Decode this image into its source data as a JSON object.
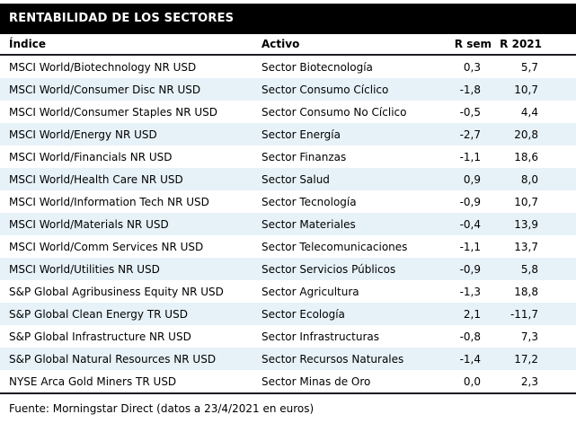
{
  "title": "RENTABILIDAD DE LOS SECTORES",
  "colors": {
    "header_bg": "#000000",
    "header_text": "#ffffff",
    "row_stripe": "#e7f2f8",
    "rule": "#1c1c22",
    "text": "#000000"
  },
  "chart_data": {
    "type": "table",
    "title": "RENTABILIDAD DE LOS SECTORES",
    "columns": [
      "Índice",
      "Activo",
      "R sem",
      "R 2021"
    ],
    "rows": [
      [
        "MSCI World/Biotechnology NR USD",
        "Sector Biotecnología",
        "0,3",
        "5,7"
      ],
      [
        "MSCI World/Consumer Disc NR USD",
        "Sector Consumo Cíclico",
        "-1,8",
        "10,7"
      ],
      [
        "MSCI World/Consumer Staples NR USD",
        "Sector Consumo No Cíclico",
        "-0,5",
        "4,4"
      ],
      [
        "MSCI World/Energy NR USD",
        "Sector Energía",
        "-2,7",
        "20,8"
      ],
      [
        "MSCI World/Financials NR USD",
        "Sector Finanzas",
        "-1,1",
        "18,6"
      ],
      [
        "MSCI World/Health Care NR USD",
        "Sector Salud",
        "0,9",
        "8,0"
      ],
      [
        "MSCI World/Information Tech NR USD",
        "Sector Tecnología",
        "-0,9",
        "10,7"
      ],
      [
        "MSCI World/Materials NR USD",
        "Sector Materiales",
        "-0,4",
        "13,9"
      ],
      [
        "MSCI World/Comm Services NR USD",
        "Sector Telecomunicaciones",
        "-1,1",
        "13,7"
      ],
      [
        "MSCI World/Utilities NR USD",
        "Sector Servicios Públicos",
        "-0,9",
        "5,8"
      ],
      [
        "S&P Global Agribusiness Equity NR USD",
        "Sector Agricultura",
        "-1,3",
        "18,8"
      ],
      [
        "S&P Global Clean Energy TR USD",
        "Sector Ecología",
        "2,1",
        "-11,7"
      ],
      [
        "S&P Global Infrastructure NR USD",
        "Sector Infrastructuras",
        "-0,8",
        "7,3"
      ],
      [
        "S&P Global Natural Resources NR USD",
        "Sector Recursos Naturales",
        "-1,4",
        "17,2"
      ],
      [
        "NYSE Arca Gold Miners TR USD",
        "Sector Minas de Oro",
        "0,0",
        "2,3"
      ]
    ],
    "source": "Fuente: Morningstar Direct (datos a 23/4/2021 en euros)"
  }
}
